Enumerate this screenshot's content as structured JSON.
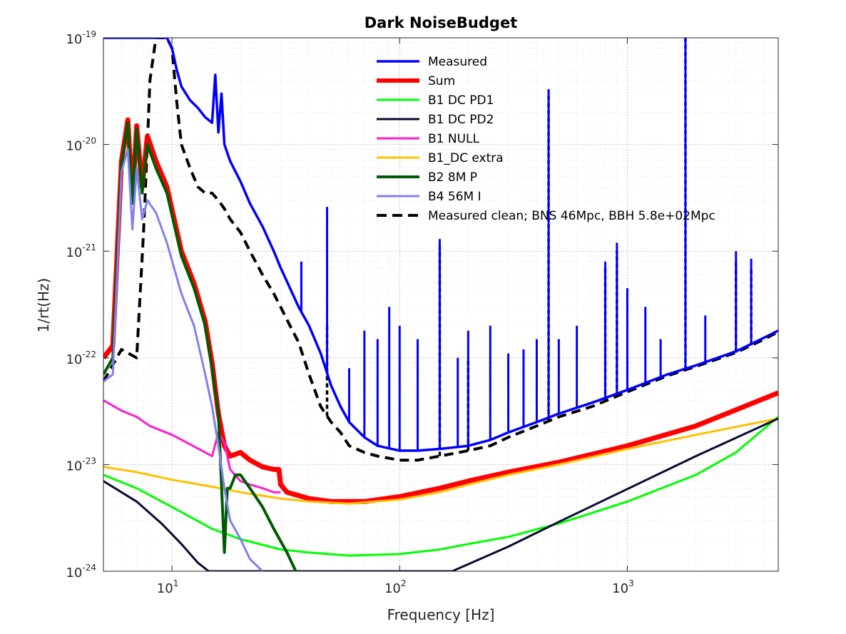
{
  "chart_data": {
    "type": "line",
    "title": "Dark NoiseBudget",
    "xlabel": "Frequency [Hz]",
    "ylabel": "1/rt(Hz)",
    "xscale": "log",
    "yscale": "log",
    "xlim": [
      5,
      4600
    ],
    "ylim": [
      1e-24,
      1e-19
    ],
    "grid": true,
    "minor_grid": true,
    "legend_position": "top-right",
    "x_tick_labels": [
      {
        "value": 10,
        "base": "10",
        "exp": "1"
      },
      {
        "value": 100,
        "base": "10",
        "exp": "2"
      },
      {
        "value": 1000,
        "base": "10",
        "exp": "3"
      }
    ],
    "y_tick_labels": [
      {
        "value": 1e-24,
        "base": "10",
        "exp": "-24"
      },
      {
        "value": 1e-23,
        "base": "10",
        "exp": "-23"
      },
      {
        "value": 1e-22,
        "base": "10",
        "exp": "-22"
      },
      {
        "value": 1e-21,
        "base": "10",
        "exp": "-21"
      },
      {
        "value": 1e-20,
        "base": "10",
        "exp": "-20"
      },
      {
        "value": 1e-19,
        "base": "10",
        "exp": "-19"
      }
    ],
    "series": [
      {
        "name": "Measured",
        "color": "#0000ff",
        "width": 3.5,
        "dash": "",
        "x": [
          5,
          5.5,
          6,
          7,
          8,
          9,
          9.5,
          10,
          10.5,
          11,
          12,
          13,
          14,
          15,
          15.5,
          16,
          16.5,
          17,
          18,
          20,
          22,
          25,
          28,
          30,
          33,
          36,
          40,
          45,
          50,
          55,
          60,
          70,
          80,
          100,
          120,
          150,
          200,
          250,
          300,
          400,
          500,
          700,
          1000,
          1500,
          2000,
          3000,
          4000,
          4600
        ],
        "y": [
          1e-19,
          1e-19,
          1e-19,
          1e-19,
          1e-19,
          1e-19,
          1e-19,
          8e-20,
          5e-20,
          3.5e-20,
          2.6e-20,
          2.2e-20,
          1.8e-20,
          1.6e-20,
          4.5e-20,
          1.3e-20,
          3e-20,
          1e-20,
          7e-21,
          4.5e-21,
          2.8e-21,
          1.7e-21,
          1e-21,
          7e-22,
          4.5e-22,
          3e-22,
          2e-22,
          1.1e-22,
          5.5e-23,
          3.5e-23,
          2.5e-23,
          1.8e-23,
          1.5e-23,
          1.35e-23,
          1.35e-23,
          1.4e-23,
          1.5e-23,
          1.7e-23,
          2e-23,
          2.5e-23,
          3e-23,
          3.8e-23,
          5e-23,
          7e-23,
          8.5e-23,
          1.15e-22,
          1.55e-22,
          1.8e-22
        ],
        "peaks": [
          [
            37,
            8e-22
          ],
          [
            44,
            1.2e-22
          ],
          [
            48,
            2.6e-21
          ],
          [
            60,
            8e-23
          ],
          [
            70,
            1.8e-22
          ],
          [
            80,
            1.5e-22
          ],
          [
            90,
            3e-22
          ],
          [
            100,
            2e-22
          ],
          [
            120,
            1.5e-22
          ],
          [
            150,
            1.3e-21
          ],
          [
            180,
            1e-22
          ],
          [
            200,
            1.8e-22
          ],
          [
            250,
            2e-22
          ],
          [
            300,
            1.1e-22
          ],
          [
            350,
            1.2e-22
          ],
          [
            400,
            1.5e-22
          ],
          [
            451,
            3.3e-20
          ],
          [
            500,
            1.5e-22
          ],
          [
            600,
            2e-22
          ],
          [
            800,
            8e-22
          ],
          [
            900,
            1.2e-21
          ],
          [
            1000,
            4.5e-22
          ],
          [
            1200,
            3e-22
          ],
          [
            1400,
            1.5e-22
          ],
          [
            1800,
            1.1e-19
          ],
          [
            2200,
            2.5e-22
          ],
          [
            3000,
            1e-21
          ],
          [
            3500,
            8.5e-22
          ]
        ]
      },
      {
        "name": "Sum",
        "color": "#ff0000",
        "width": 7,
        "dash": "",
        "x": [
          5,
          5.5,
          6,
          6.4,
          6.7,
          7,
          7.4,
          7.8,
          8.5,
          9.5,
          11,
          12.5,
          14,
          15,
          16,
          17,
          18,
          20,
          22,
          25,
          28,
          29.5,
          30,
          32,
          40,
          50,
          60,
          70,
          100,
          150,
          200,
          300,
          500,
          1000,
          2000,
          4600
        ],
        "y": [
          1e-22,
          1.3e-22,
          7e-21,
          1.7e-20,
          3e-21,
          1.5e-20,
          4e-21,
          1.2e-20,
          7e-21,
          4e-21,
          1e-21,
          5e-22,
          2.2e-22,
          9e-23,
          3e-23,
          1.5e-23,
          1.2e-23,
          1.3e-23,
          1.1e-23,
          9.5e-24,
          9e-24,
          9e-24,
          6.5e-24,
          5.5e-24,
          4.8e-24,
          4.5e-24,
          4.5e-24,
          4.5e-24,
          5e-24,
          6e-24,
          7e-24,
          8.5e-24,
          1.05e-23,
          1.5e-23,
          2.3e-23,
          4.7e-23
        ]
      },
      {
        "name": "B1 DC PD1",
        "color": "#00ff00",
        "width": 3,
        "dash": "",
        "x": [
          5,
          7,
          10,
          15,
          20,
          30,
          40,
          60,
          100,
          150,
          200,
          300,
          500,
          1000,
          2000,
          3000,
          4600
        ],
        "y": [
          8e-24,
          6e-24,
          4e-24,
          2.5e-24,
          2e-24,
          1.6e-24,
          1.5e-24,
          1.4e-24,
          1.45e-24,
          1.6e-24,
          1.8e-24,
          2.1e-24,
          2.8e-24,
          4.5e-24,
          8e-24,
          1.3e-23,
          2.8e-23
        ]
      },
      {
        "name": "B1 DC PD2",
        "color": "#0a0a32",
        "width": 3,
        "dash": "",
        "x": [
          5,
          7,
          9,
          11,
          13,
          14.5,
          170,
          300,
          500,
          1000,
          2000,
          4600
        ],
        "y": [
          7e-24,
          4.5e-24,
          2.8e-24,
          1.8e-24,
          1.2e-24,
          1e-24,
          1e-24,
          1.7e-24,
          2.9e-24,
          5.9e-24,
          1.2e-23,
          2.7e-23
        ]
      },
      {
        "name": "B1 NULL",
        "color": "#ff1dce",
        "width": 3,
        "dash": "",
        "x": [
          5,
          6,
          7,
          8,
          10,
          12,
          14,
          15,
          16,
          17,
          18,
          20,
          22,
          25,
          28,
          30
        ],
        "y": [
          4e-23,
          3.2e-23,
          2.8e-23,
          2.3e-23,
          1.9e-23,
          1.55e-23,
          1.3e-23,
          1.2e-23,
          2e-23,
          1.6e-23,
          9e-24,
          7e-24,
          6.5e-24,
          6e-24,
          5.5e-24,
          5.5e-24
        ]
      },
      {
        "name": "B1_DC extra",
        "color": "#ffc000",
        "width": 3,
        "dash": "",
        "x": [
          5,
          7,
          10,
          15,
          20,
          30,
          40,
          60,
          100,
          150,
          200,
          300,
          500,
          1000,
          2000,
          4600
        ],
        "y": [
          9.5e-24,
          8.5e-24,
          7.2e-24,
          6.2e-24,
          5.5e-24,
          4.8e-24,
          4.5e-24,
          4.3e-24,
          4.7e-24,
          5.5e-24,
          6.5e-24,
          8e-24,
          1e-23,
          1.4e-23,
          1.9e-23,
          2.7e-23
        ]
      },
      {
        "name": "B2 8M P",
        "color": "#005a00",
        "width": 4,
        "dash": "",
        "x": [
          5,
          5.5,
          6,
          6.4,
          6.7,
          7,
          7.4,
          7.8,
          8.5,
          9.5,
          11,
          12.5,
          14,
          15,
          16,
          17,
          17.5,
          18,
          19,
          20,
          22,
          25,
          28,
          32,
          35
        ],
        "y": [
          7e-23,
          1e-22,
          6.5e-21,
          1.6e-20,
          2.8e-21,
          1.4e-20,
          3.5e-21,
          1e-20,
          6e-21,
          3.5e-21,
          9e-22,
          4.5e-22,
          2e-22,
          8e-23,
          3e-23,
          1.5e-24,
          6e-24,
          6e-24,
          8e-24,
          8e-24,
          6e-24,
          4e-24,
          2.5e-24,
          1.5e-24,
          1e-24
        ]
      },
      {
        "name": "B4 56M I",
        "color": "#8080f0",
        "width": 3,
        "dash": "",
        "x": [
          5,
          5.5,
          6,
          6.4,
          6.7,
          7,
          7.4,
          7.8,
          8.5,
          9.5,
          11,
          12.5,
          14,
          15,
          16,
          17,
          18,
          20,
          22,
          25
        ],
        "y": [
          6e-23,
          7e-23,
          5.5e-21,
          9e-21,
          1.6e-21,
          6e-21,
          2e-21,
          3e-21,
          2.3e-21,
          1.2e-21,
          4e-22,
          2e-22,
          7e-23,
          3.5e-23,
          1.5e-23,
          6e-24,
          3e-24,
          2e-24,
          1.3e-24,
          1e-24
        ]
      },
      {
        "name": "Measured clean; BNS 46Mpc, BBH 5.8e+02Mpc",
        "color": "#000000",
        "width": 4,
        "dash": "13,8",
        "x": [
          5,
          6,
          7,
          7.5,
          7.8,
          8,
          8.5,
          9,
          9.5,
          10,
          10.5,
          11,
          12,
          13,
          14,
          15,
          16,
          17,
          18,
          20,
          22,
          25,
          28,
          30,
          33,
          36,
          40,
          45,
          50,
          55,
          60,
          70,
          80,
          100,
          120,
          150,
          200,
          250,
          300,
          400,
          500,
          700,
          1000,
          1500,
          2000,
          3000,
          4000,
          4600
        ],
        "y": [
          6e-23,
          1.2e-22,
          1e-22,
          1.5e-21,
          1e-20,
          4e-20,
          1e-19,
          1e-19,
          1e-19,
          8e-20,
          2.5e-20,
          1e-20,
          6e-21,
          4e-21,
          3.5e-21,
          3.5e-21,
          3e-21,
          2.5e-21,
          2e-21,
          1.5e-21,
          1e-21,
          6e-22,
          4e-22,
          3e-22,
          2e-22,
          1.4e-22,
          7e-23,
          3.5e-23,
          2.5e-23,
          2e-23,
          1.5e-23,
          1.3e-23,
          1.2e-23,
          1.1e-23,
          1.1e-23,
          1.2e-23,
          1.35e-23,
          1.5e-23,
          1.8e-23,
          2.3e-23,
          2.8e-23,
          3.5e-23,
          4.8e-23,
          6.8e-23,
          8.3e-23,
          1.12e-22,
          1.5e-22,
          1.75e-22
        ],
        "peaks": [
          [
            48,
            2e-22
          ],
          [
            150,
            1.1e-21
          ],
          [
            200,
            1e-22
          ],
          [
            451,
            3.1e-20
          ],
          [
            800,
            7e-22
          ],
          [
            900,
            1e-21
          ],
          [
            1800,
            1e-19
          ],
          [
            3000,
            8e-22
          ],
          [
            3500,
            7e-22
          ]
        ]
      }
    ]
  }
}
